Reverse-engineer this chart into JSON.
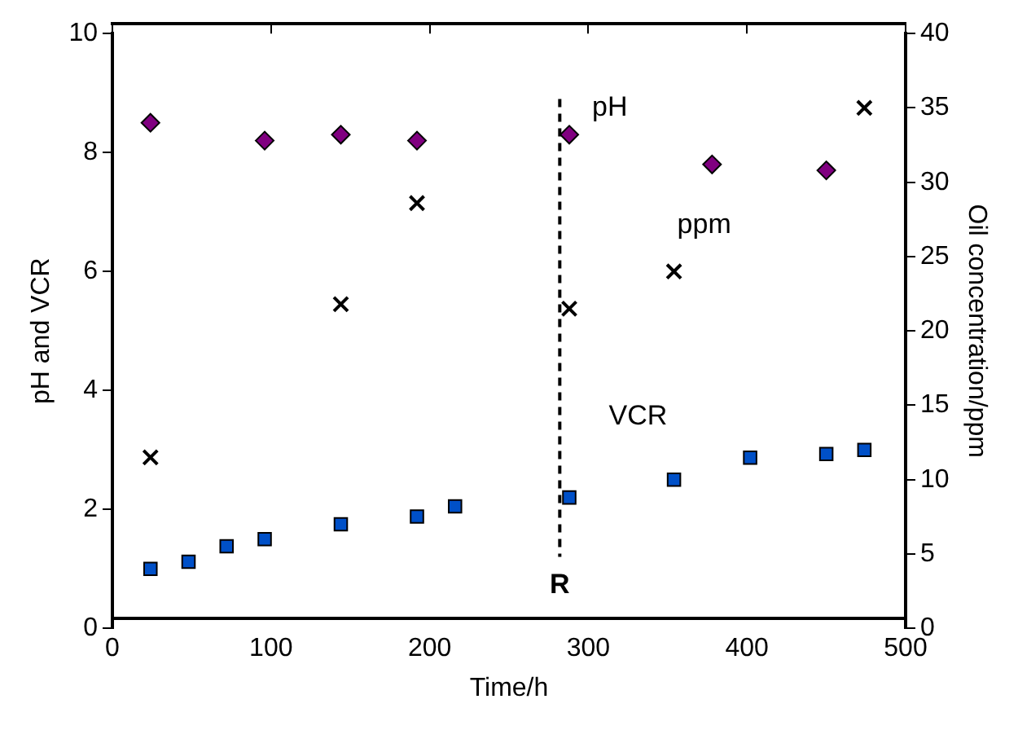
{
  "chart_data": {
    "type": "scatter",
    "xlabel": "Time/h",
    "ylabel": "pH and VCR",
    "y2label": "Oil concentration/ppm",
    "xlim": [
      0,
      500
    ],
    "xticks": [
      0,
      100,
      200,
      300,
      400,
      500
    ],
    "ylim": [
      0,
      10
    ],
    "yticks": [
      0,
      2,
      4,
      6,
      8,
      10
    ],
    "y2lim": [
      0,
      40
    ],
    "y2ticks": [
      0,
      5,
      10,
      15,
      20,
      25,
      30,
      35,
      40
    ],
    "grid": false,
    "legend": false,
    "series": [
      {
        "name": "pH",
        "color": "#800080",
        "marker": "diamond",
        "x": [
          24,
          96,
          144,
          192,
          288,
          378,
          450
        ],
        "values": [
          8.5,
          8.2,
          8.3,
          8.2,
          8.3,
          7.8,
          7.7
        ]
      },
      {
        "name": "ppm",
        "color": "#000000",
        "marker": "cross",
        "axis": "y2",
        "x": [
          24,
          144,
          192,
          288,
          354,
          474
        ],
        "values": [
          11.5,
          21.8,
          28.6,
          21.5,
          24,
          35
        ]
      },
      {
        "name": "VCR",
        "color": "#0050c8",
        "marker": "square",
        "x": [
          24,
          48,
          72,
          96,
          144,
          192,
          216,
          288,
          354,
          402,
          450,
          474
        ],
        "values": [
          1.0,
          1.12,
          1.38,
          1.5,
          1.75,
          1.88,
          2.05,
          2.2,
          2.5,
          2.87,
          2.93,
          3.0
        ]
      }
    ],
    "ref_lines": [
      {
        "axis": "x",
        "value": 282,
        "label": "R",
        "color": "#000000",
        "line_style": "dashed"
      }
    ]
  }
}
